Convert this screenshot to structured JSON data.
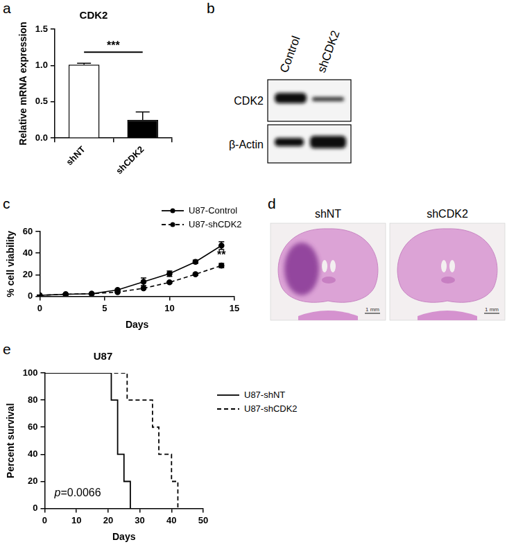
{
  "panel_labels": [
    "a",
    "b",
    "c",
    "d",
    "e"
  ],
  "chart_data": [
    {
      "type": "bar",
      "title": "CDK2",
      "y_label": "Relative mRNA expression",
      "categories": [
        "shNT",
        "shCDK2"
      ],
      "values": [
        1.01,
        0.25
      ],
      "errors": [
        0.02,
        0.11
      ],
      "colors": [
        "#ffffff",
        "#000000"
      ],
      "ylim": [
        0,
        1.5
      ],
      "yticks": [
        {
          "value": 0,
          "label": "0.0"
        },
        {
          "value": 0.5,
          "label": "0.5"
        },
        {
          "value": 1,
          "label": "1.0"
        },
        {
          "value": 1.5,
          "label": "1.5"
        }
      ],
      "grid": false,
      "annotations": [
        "***"
      ]
    },
    {
      "type": "line",
      "x_label": "Days",
      "y_label": "% cell viability",
      "xlim": [
        0,
        15
      ],
      "xticks": [
        0,
        5,
        10,
        15
      ],
      "ylim": [
        0,
        60
      ],
      "yticks": [
        0,
        20,
        40,
        60
      ],
      "grid": false,
      "legend": "upper right",
      "series": [
        {
          "name": "U87-Control",
          "color": "#000000",
          "line_style": "solid",
          "marker": "circle",
          "x": [
            0,
            2,
            4,
            6,
            8,
            10,
            12,
            14
          ],
          "values": [
            1,
            2,
            2.5,
            6,
            13.5,
            21,
            32,
            47
          ],
          "errors": [
            0.3,
            0.3,
            0.4,
            0.7,
            3.5,
            2.5,
            1.5,
            3.5
          ]
        },
        {
          "name": "U87-shCDK2",
          "color": "#000000",
          "line_style": "dashed",
          "marker": "circle",
          "x": [
            0,
            2,
            4,
            6,
            8,
            10,
            12,
            14
          ],
          "values": [
            1,
            2,
            2.5,
            4,
            7.5,
            13,
            20.5,
            28.5
          ],
          "errors": [
            0.2,
            0.3,
            0.3,
            0.5,
            0.7,
            0.8,
            1,
            2
          ]
        }
      ],
      "annotations": [
        "**"
      ]
    },
    {
      "type": "step",
      "title": "U87",
      "x_label": "Days",
      "y_label": "Percent survival",
      "xlim": [
        0,
        50
      ],
      "xticks": [
        0,
        10,
        20,
        30,
        40,
        50
      ],
      "ylim": [
        0,
        100
      ],
      "yticks": [
        0,
        20,
        40,
        60,
        80,
        100
      ],
      "grid": false,
      "legend": "right",
      "series": [
        {
          "name": "U87-shNT",
          "color": "#000000",
          "line_style": "solid",
          "x": [
            0,
            21,
            23,
            25,
            27
          ],
          "values": [
            100,
            80,
            40,
            20,
            0
          ]
        },
        {
          "name": "U87-shCDK2",
          "color": "#000000",
          "line_style": "dashed",
          "x": [
            0,
            26,
            34,
            36,
            40,
            42
          ],
          "values": [
            100,
            80,
            60,
            40,
            20,
            0
          ]
        }
      ],
      "annotations": [
        "p=0.0066"
      ]
    }
  ],
  "blot": {
    "lanes": [
      "Control",
      "shCDK2"
    ],
    "rows": [
      "CDK2",
      "β-Actin"
    ]
  },
  "histology": {
    "images": [
      {
        "label": "shNT",
        "scale_bar": "1 mm"
      },
      {
        "label": "shCDK2",
        "scale_bar": "1 mm"
      }
    ]
  }
}
